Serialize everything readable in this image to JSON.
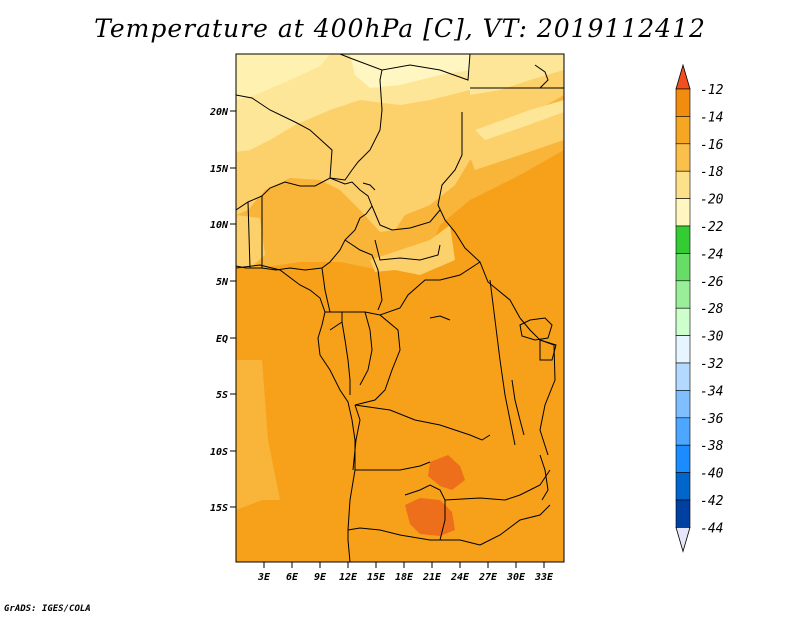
{
  "title": "Temperature at 400hPa [C], VT: 2019112412",
  "credit": "GrADS: IGES/COLA",
  "map": {
    "type": "filled-contour-map",
    "variable": "Temperature at 400hPa",
    "units": "C",
    "valid_time": "2019112412",
    "region_lon": [
      0,
      35
    ],
    "region_lat": [
      -20,
      25
    ],
    "x_ticks": [
      "3E",
      "6E",
      "9E",
      "12E",
      "15E",
      "18E",
      "21E",
      "24E",
      "27E",
      "30E",
      "33E"
    ],
    "y_ticks": [
      "20N",
      "15N",
      "10N",
      "5N",
      "EQ",
      "5S",
      "10S",
      "15S"
    ]
  },
  "colorbar": {
    "labels": [
      "-12",
      "-14",
      "-16",
      "-18",
      "-20",
      "-22",
      "-24",
      "-26",
      "-28",
      "-30",
      "-32",
      "-34",
      "-36",
      "-38",
      "-40",
      "-42",
      "-44"
    ],
    "top_arrow_color": "#f0501e",
    "bottom_arrow_color": "#e6e6fa",
    "colors": [
      "#e36414",
      "#f28c0e",
      "#f5a623",
      "#fbbf4b",
      "#fde08a",
      "#fff6c1",
      "#33cc33",
      "#66dd66",
      "#99ee99",
      "#ccffcc",
      "#e6f5ff",
      "#b3d9ff",
      "#80bfff",
      "#4da6ff",
      "#1a8cff",
      "#0066cc",
      "#0040a0",
      "#10106e"
    ]
  }
}
